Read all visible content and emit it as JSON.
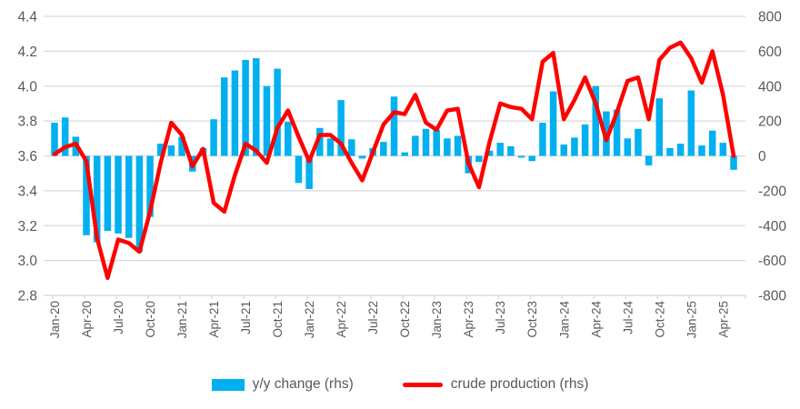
{
  "chart_data": {
    "type": "combo",
    "title": "",
    "grid": true,
    "legend_position": "bottom",
    "categories": [
      "Jan-20",
      "Feb-20",
      "Mar-20",
      "Apr-20",
      "May-20",
      "Jun-20",
      "Jul-20",
      "Aug-20",
      "Sep-20",
      "Oct-20",
      "Nov-20",
      "Dec-20",
      "Jan-21",
      "Feb-21",
      "Mar-21",
      "Apr-21",
      "May-21",
      "Jun-21",
      "Jul-21",
      "Aug-21",
      "Sep-21",
      "Oct-21",
      "Nov-21",
      "Dec-21",
      "Jan-22",
      "Feb-22",
      "Mar-22",
      "Apr-22",
      "May-22",
      "Jun-22",
      "Jul-22",
      "Aug-22",
      "Sep-22",
      "Oct-22",
      "Nov-22",
      "Dec-22",
      "Jan-23",
      "Feb-23",
      "Mar-23",
      "Apr-23",
      "May-23",
      "Jun-23",
      "Jul-23",
      "Aug-23",
      "Sep-23",
      "Oct-23",
      "Nov-23",
      "Dec-23",
      "Jan-24",
      "Feb-24",
      "Mar-24",
      "Apr-24",
      "May-24",
      "Jun-24",
      "Jul-24",
      "Aug-24",
      "Sep-24",
      "Oct-24",
      "Nov-24",
      "Dec-24",
      "Jan-25",
      "Feb-25",
      "Mar-25",
      "Apr-25",
      "May-25"
    ],
    "x_tick_labels": [
      "Jan-20",
      "Apr-20",
      "Jul-20",
      "Oct-20",
      "Jan-21",
      "Apr-21",
      "Jul-21",
      "Oct-21",
      "Jan-22",
      "Apr-22",
      "Jul-22",
      "Oct-22",
      "Jan-23",
      "Apr-23",
      "Jul-23",
      "Oct-23",
      "Jan-24",
      "Apr-24",
      "Jul-24",
      "Oct-24",
      "Jan-25",
      "Apr-25"
    ],
    "series": [
      {
        "name": "y/y change (rhs)",
        "type": "bar",
        "axis": "right",
        "color": "#00B0F0",
        "values": [
          190,
          220,
          110,
          -455,
          -495,
          -430,
          -445,
          -470,
          -550,
          -350,
          70,
          60,
          110,
          -90,
          45,
          210,
          450,
          490,
          550,
          560,
          400,
          500,
          195,
          -155,
          -190,
          160,
          100,
          320,
          95,
          -15,
          45,
          80,
          340,
          20,
          115,
          155,
          150,
          100,
          115,
          -100,
          -35,
          30,
          75,
          55,
          -10,
          -30,
          190,
          370,
          65,
          105,
          180,
          400,
          255,
          265,
          100,
          155,
          -55,
          330,
          45,
          70,
          375,
          60,
          145,
          75,
          -80
        ]
      },
      {
        "name": "crude production (rhs)",
        "type": "line",
        "axis": "left",
        "color": "#FF0000",
        "values": [
          3.61,
          3.65,
          3.67,
          3.57,
          3.13,
          2.9,
          3.12,
          3.1,
          3.05,
          3.28,
          3.56,
          3.79,
          3.72,
          3.54,
          3.64,
          3.33,
          3.28,
          3.49,
          3.67,
          3.63,
          3.56,
          3.76,
          3.86,
          3.71,
          3.57,
          3.72,
          3.72,
          3.67,
          3.56,
          3.46,
          3.62,
          3.78,
          3.85,
          3.84,
          3.95,
          3.79,
          3.75,
          3.86,
          3.87,
          3.56,
          3.42,
          3.68,
          3.9,
          3.88,
          3.87,
          3.81,
          4.14,
          4.19,
          3.81,
          3.92,
          4.05,
          3.9,
          3.69,
          3.85,
          4.03,
          4.05,
          3.81,
          4.15,
          4.22,
          4.25,
          4.16,
          4.02,
          4.2,
          3.95,
          3.6
        ]
      }
    ],
    "left_axis": {
      "min": 2.8,
      "max": 4.4,
      "step": 0.2,
      "ticks": [
        "4.4",
        "4.2",
        "4.0",
        "3.8",
        "3.6",
        "3.4",
        "3.2",
        "3.0",
        "2.8"
      ]
    },
    "right_axis": {
      "min": -800,
      "max": 800,
      "step": 200,
      "ticks": [
        "800",
        "600",
        "400",
        "200",
        "0",
        "-200",
        "-400",
        "-600",
        "-800"
      ]
    }
  },
  "legend": {
    "items": [
      {
        "label": "y/y change (rhs)",
        "color": "#00B0F0"
      },
      {
        "label": "crude production (rhs)",
        "color": "#FF0000"
      }
    ]
  },
  "colors": {
    "bar": "#00B0F0",
    "line": "#FF0000",
    "axis_text": "#595959",
    "gridline": "#D9D9D9",
    "background": "#FFFFFF"
  }
}
